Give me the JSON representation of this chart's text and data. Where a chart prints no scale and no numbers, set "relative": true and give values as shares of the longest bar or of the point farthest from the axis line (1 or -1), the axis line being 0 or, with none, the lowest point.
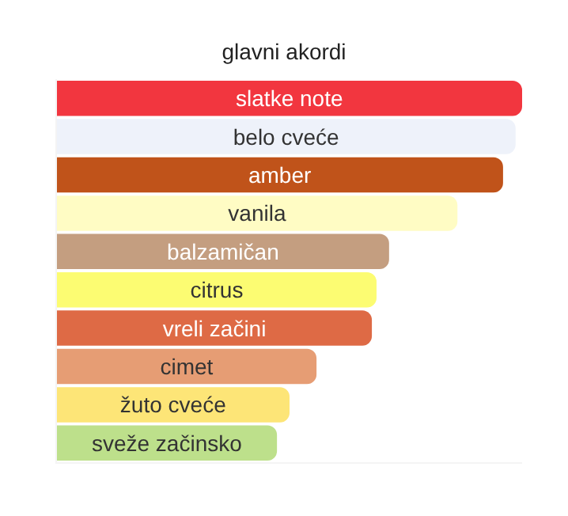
{
  "chart_data": {
    "type": "bar",
    "orientation": "horizontal",
    "relative": true,
    "title": "glavni akordi",
    "categories": [
      "slatke note",
      "belo cveće",
      "amber",
      "vanila",
      "balzamičan",
      "citrus",
      "vreli začini",
      "cimet",
      "žuto cveće",
      "sveže začinsko"
    ],
    "values": [
      1,
      0.986,
      0.959,
      0.861,
      0.714,
      0.687,
      0.677,
      0.558,
      0.5,
      0.473
    ],
    "colors": [
      "#f2363f",
      "#eef2fa",
      "#c0531a",
      "#fffcc4",
      "#c49e80",
      "#fcfc72",
      "#de6a45",
      "#e69d74",
      "#fde577",
      "#bde08b"
    ],
    "legend": false,
    "tick_labels": false
  }
}
